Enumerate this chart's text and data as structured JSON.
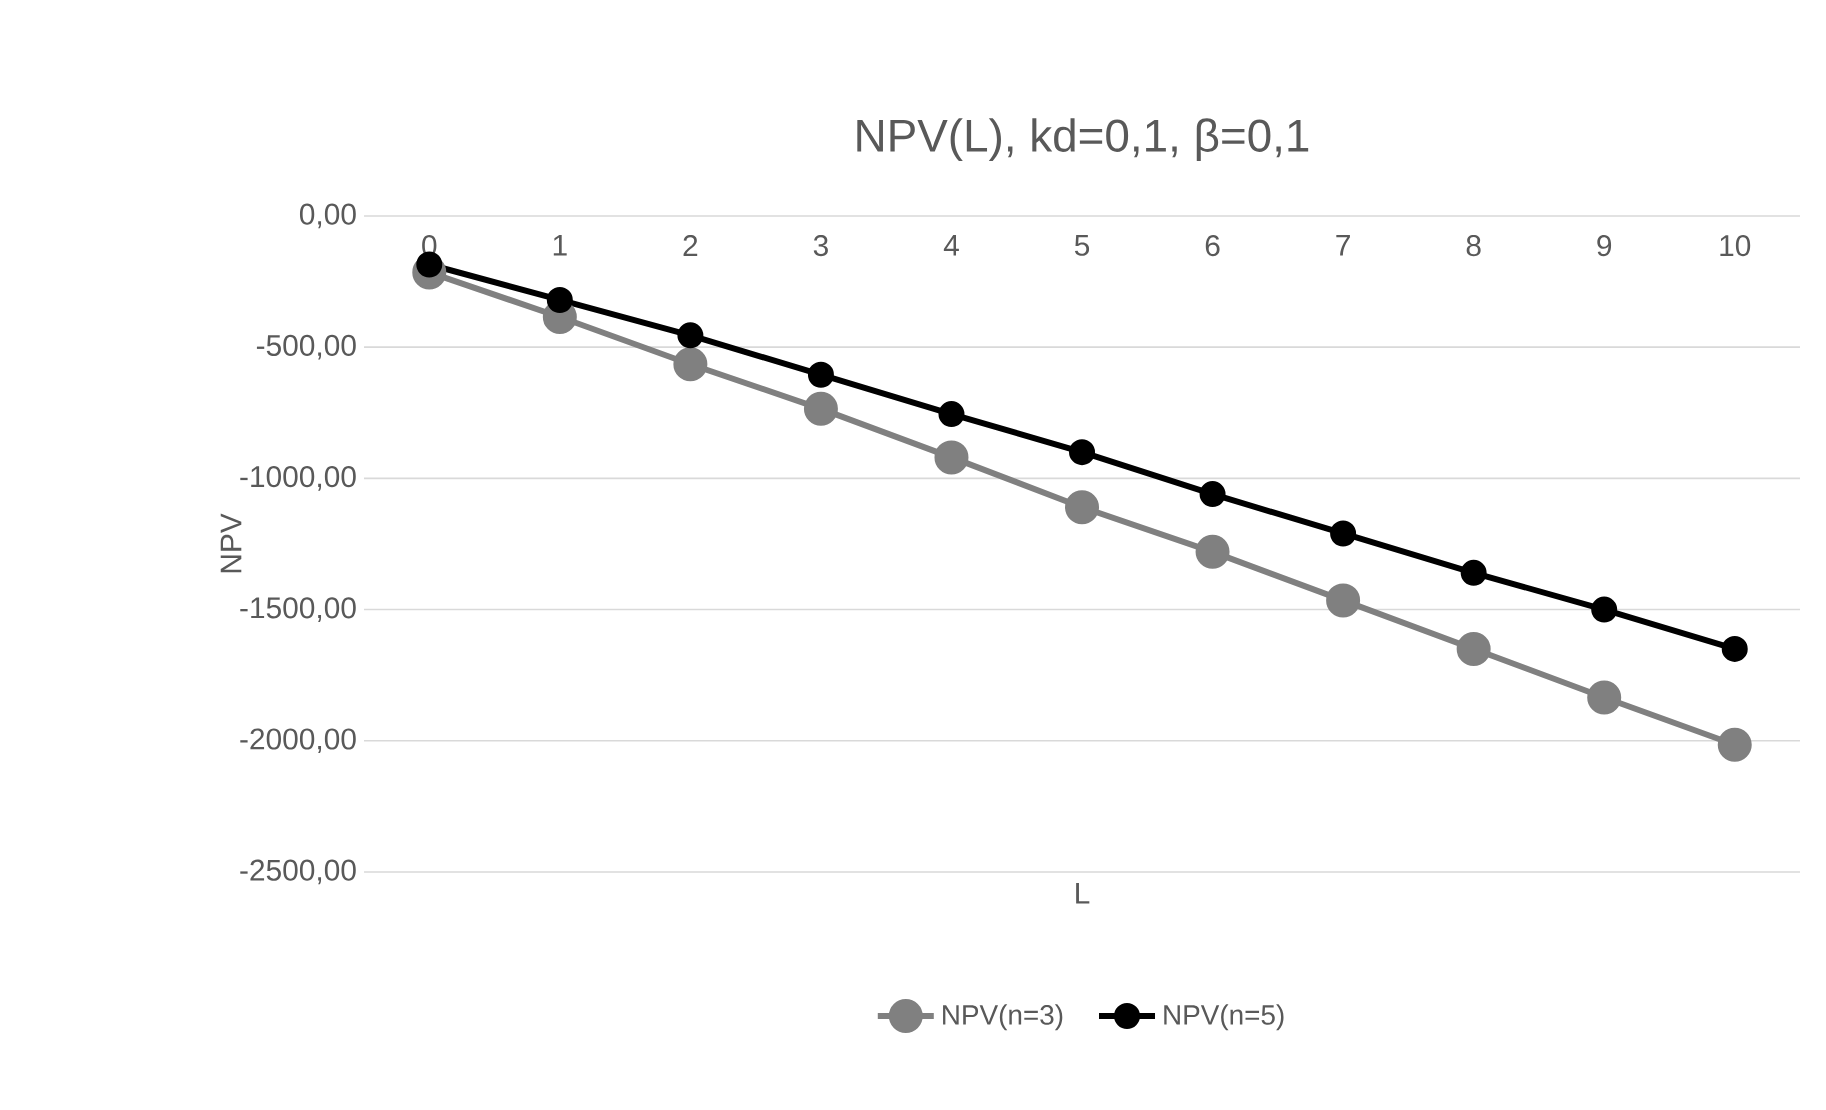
{
  "chart_data": {
    "type": "line",
    "title": "NPV(L), kd=0,1, β=0,1",
    "xlabel": "L",
    "ylabel": "NPV",
    "categories": [
      "0",
      "1",
      "2",
      "3",
      "4",
      "5",
      "6",
      "7",
      "8",
      "9",
      "10"
    ],
    "series": [
      {
        "name": "NPV(n=3)",
        "color": "#808080",
        "values": [
          -215,
          -385,
          -565,
          -735,
          -920,
          -1110,
          -1280,
          -1465,
          -1650,
          -1835,
          -2015
        ]
      },
      {
        "name": "NPV(n=5)",
        "color": "#000000",
        "values": [
          -185,
          -320,
          -455,
          -605,
          -755,
          -900,
          -1060,
          -1210,
          -1360,
          -1500,
          -1650
        ]
      }
    ],
    "ylim": [
      -2500,
      0
    ],
    "yticks": [
      {
        "value": -2500,
        "label": "-2500,00"
      },
      {
        "value": -2000,
        "label": "-2000,00"
      },
      {
        "value": -1500,
        "label": "-1500,00"
      },
      {
        "value": -1000,
        "label": "-1000,00"
      },
      {
        "value": -500,
        "label": "-500,00"
      },
      {
        "value": 0,
        "label": "0,00"
      }
    ],
    "grid": "y",
    "legend": "bottom",
    "marker": "circle",
    "line_style": "solid"
  }
}
